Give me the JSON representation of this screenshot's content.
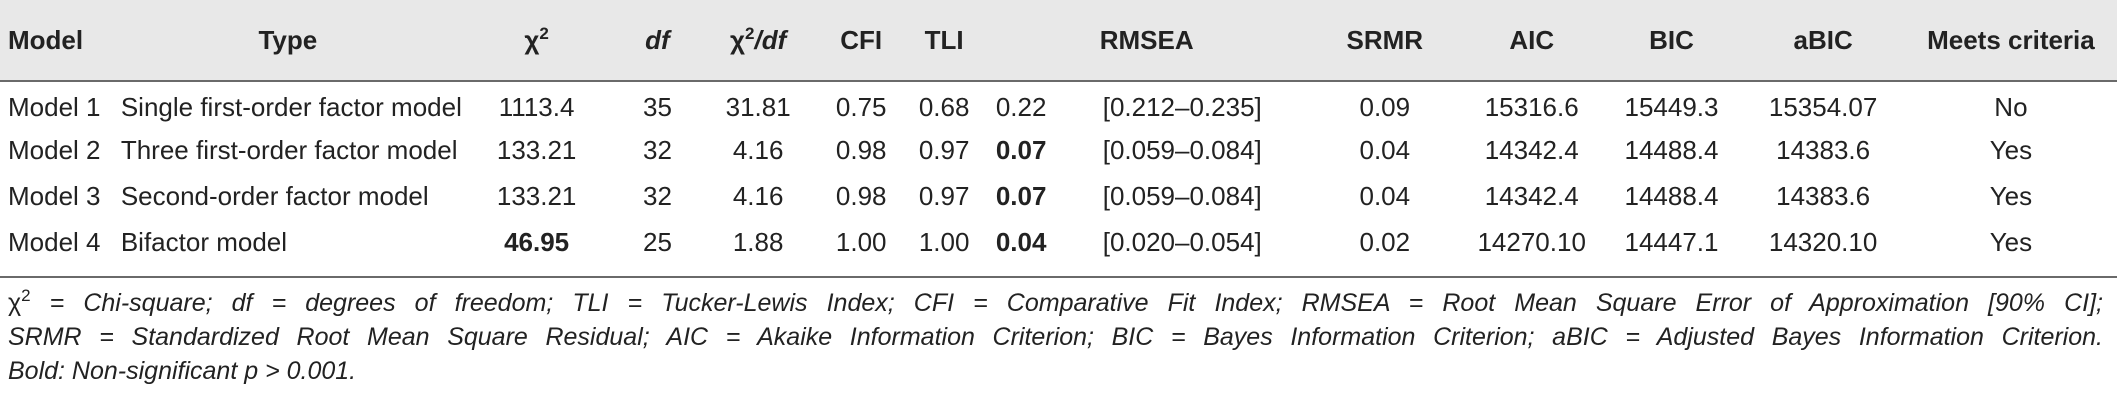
{
  "table": {
    "columns": [
      {
        "label": "Model"
      },
      {
        "label": "Type"
      },
      {
        "label": "χ",
        "sup": "2"
      },
      {
        "label": "df"
      },
      {
        "label": "χ",
        "sup": "2",
        "tail": "/df"
      },
      {
        "label": "CFI"
      },
      {
        "label": "TLI"
      },
      {
        "label": "RMSEA"
      },
      {
        "label": "SRMR"
      },
      {
        "label": "AIC"
      },
      {
        "label": "BIC"
      },
      {
        "label": "aBIC"
      },
      {
        "label": "Meets criteria"
      }
    ],
    "rows": [
      {
        "model": "Model 1",
        "type": "Single first-order factor model",
        "chi2": "1113.4",
        "df": "35",
        "chi2df": "31.81",
        "cfi": "0.75",
        "tli": "0.68",
        "rmsea": "0.22",
        "ci": "[0.212–0.235]",
        "srmr": "0.09",
        "aic": "15316.6",
        "bic": "15449.3",
        "abic": "15354.07",
        "meets": "No"
      },
      {
        "model": "Model 2",
        "type": "Three first-order factor model",
        "chi2": "133.21",
        "df": "32",
        "chi2df": "4.16",
        "cfi": "0.98",
        "tli": "0.97",
        "rmsea": "0.07",
        "ci": "[0.059–0.084]",
        "srmr": "0.04",
        "aic": "14342.4",
        "bic": "14488.4",
        "abic": "14383.6",
        "meets": "Yes"
      },
      {
        "model": "Model 3",
        "type": "Second-order factor model",
        "chi2": "133.21",
        "df": "32",
        "chi2df": "4.16",
        "cfi": "0.98",
        "tli": "0.97",
        "rmsea": "0.07",
        "ci": "[0.059–0.084]",
        "srmr": "0.04",
        "aic": "14342.4",
        "bic": "14488.4",
        "abic": "14383.6",
        "meets": "Yes"
      },
      {
        "model": "Model 4",
        "type": "Bifactor model",
        "chi2": "46.95",
        "df": "25",
        "chi2df": "1.88",
        "cfi": "1.00",
        "tli": "1.00",
        "rmsea": "0.04",
        "ci": "[0.020–0.054]",
        "srmr": "0.02",
        "aic": "14270.10",
        "bic": "14447.1",
        "abic": "14320.10",
        "meets": "Yes"
      }
    ]
  },
  "notes": {
    "line1_a": "χ",
    "line1_sup": "2",
    "line1_b": " = Chi-square; df = degrees of freedom; TLI = Tucker-Lewis Index; CFI = Comparative Fit Index; RMSEA = Root Mean Square Error of Approximation [90% CI];",
    "line2": "SRMR = Standardized Root Mean Square Residual; AIC = Akaike Information Criterion; BIC = Bayes Information Criterion; aBIC = Adjusted Bayes Information Criterion.",
    "line3": "Bold: Non-significant p > 0.001."
  }
}
